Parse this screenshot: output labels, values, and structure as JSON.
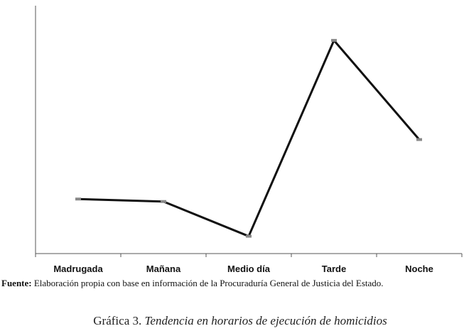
{
  "chart_data": {
    "type": "line",
    "categories": [
      "Madrugada",
      "Mañana",
      "Medio día",
      "Tarde",
      "Noche"
    ],
    "values": [
      22,
      21,
      7,
      86,
      46
    ],
    "color": "#111111",
    "marker_color": "#888888",
    "ylim": [
      0,
      100
    ]
  },
  "source": {
    "label": "Fuente:",
    "text": "Elaboración propia con base en información de la Procuraduría General de Justicia del Estado."
  },
  "caption": {
    "number": "Gráfica 3.",
    "title": "Tendencia en horarios de ejecución de homicidios"
  }
}
